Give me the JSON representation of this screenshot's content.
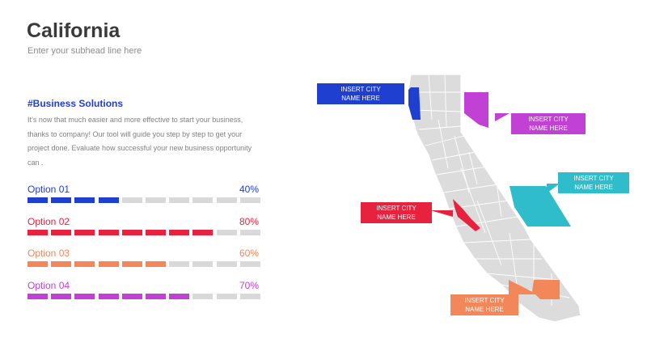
{
  "title": "California",
  "subhead": "Enter your subhead line here",
  "section_title": "#Business Solutions",
  "body_text": "It’s now that much easier and more effective to start your business, thanks to company! Our tool will guide you step by step to get your project done. Evaluate how successful your new business opportunity can .",
  "options": [
    {
      "label": "Option 01",
      "percent_text": "40%",
      "percent": 40,
      "color": "#1f3fd0"
    },
    {
      "label": "Option 02",
      "percent_text": "80%",
      "percent": 80,
      "color": "#e8213f"
    },
    {
      "label": "Option 03",
      "percent_text": "60%",
      "percent": 60,
      "color": "#f4875a"
    },
    {
      "label": "Option 04",
      "percent_text": "70%",
      "percent": 70,
      "color": "#c041d3"
    }
  ],
  "callouts": [
    {
      "line1": "INSERT CITY",
      "line2": "NAME HERE",
      "color": "#1f3fd0"
    },
    {
      "line1": "INSERT CITY",
      "line2": "NAME HERE",
      "color": "#c041d3"
    },
    {
      "line1": "INSERT CITY",
      "line2": "NAME HERE",
      "color": "#2fbccb"
    },
    {
      "line1": "INSERT CITY",
      "line2": "NAME HERE",
      "color": "#e8213f"
    },
    {
      "line1": "INSERT CITY",
      "line2": "NAME HERE",
      "color": "#f4875a"
    }
  ],
  "colors": {
    "inactive_segment": "#d9d9d9",
    "map_fill": "#dcdcdc",
    "map_border": "#ffffff"
  }
}
